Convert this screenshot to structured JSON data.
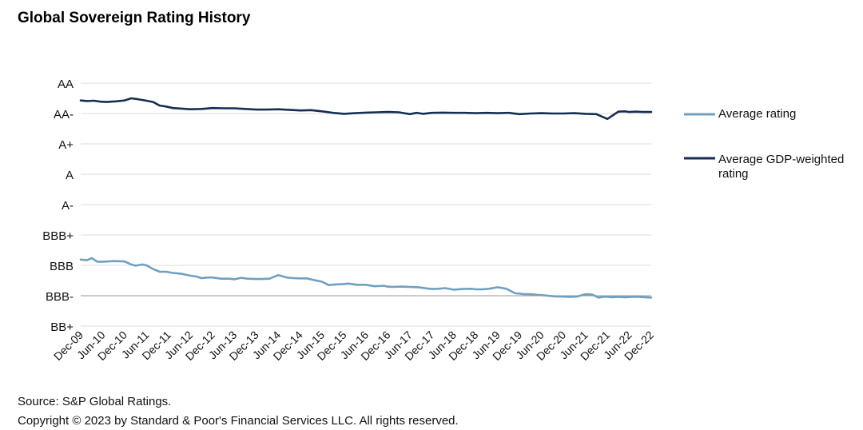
{
  "chart_data": {
    "type": "line",
    "title": "Global Sovereign Rating History",
    "xlabel": "",
    "ylabel": "",
    "y_categories": [
      "BB+",
      "BBB-",
      "BBB",
      "BBB+",
      "A-",
      "A",
      "A+",
      "AA-",
      "AA"
    ],
    "ylim": [
      0,
      8
    ],
    "x_range": [
      "Dec-09",
      "Dec-22"
    ],
    "x_ticks": [
      "Dec-09",
      "Jun-10",
      "Dec-10",
      "Jun-11",
      "Dec-11",
      "Jun-12",
      "Dec-12",
      "Jun-13",
      "Dec-13",
      "Jun-14",
      "Dec-14",
      "Jun-15",
      "Dec-15",
      "Jun-16",
      "Dec-16",
      "Jun-17",
      "Dec-17",
      "Jun-18",
      "Dec-18",
      "Jun-19",
      "Dec-19",
      "Jun-20",
      "Dec-20",
      "Jun-21",
      "Dec-21",
      "Jun-22",
      "Dec-22"
    ],
    "grid": true,
    "legend_position": "right",
    "series": [
      {
        "name": "Average rating",
        "color": "#6fa0c0",
        "x": [
          0,
          0.3,
          0.5,
          0.75,
          1,
          1.5,
          2,
          2.3,
          2.5,
          2.8,
          3,
          3.3,
          3.6,
          3.9,
          4.2,
          4.6,
          5,
          5.3,
          5.5,
          5.8,
          6,
          6.4,
          6.8,
          7,
          7.3,
          7.6,
          8,
          8.2,
          8.6,
          9,
          9.4,
          9.7,
          10,
          10.3,
          10.6,
          11,
          11.3,
          11.6,
          11.9,
          12.2,
          12.6,
          13,
          13.4,
          13.8,
          14,
          14.2,
          14.6,
          15,
          15.4,
          15.8,
          16,
          16.3,
          16.6,
          17,
          17.4,
          17.8,
          18,
          18.3,
          18.6,
          19,
          19.4,
          19.8,
          20,
          20.2,
          20.5,
          20.8,
          21,
          21.3,
          21.6,
          22,
          22.3,
          22.6,
          23,
          23.3,
          23.6,
          23.9,
          24.2,
          24.5,
          24.8,
          25.1,
          25.4,
          25.7,
          26
        ],
        "values": [
          2.19,
          2.17,
          2.24,
          2.12,
          2.12,
          2.14,
          2.13,
          2.03,
          1.99,
          2.03,
          2.0,
          1.88,
          1.79,
          1.79,
          1.75,
          1.72,
          1.66,
          1.63,
          1.58,
          1.6,
          1.6,
          1.56,
          1.56,
          1.54,
          1.59,
          1.56,
          1.55,
          1.55,
          1.56,
          1.68,
          1.6,
          1.58,
          1.57,
          1.57,
          1.52,
          1.46,
          1.35,
          1.37,
          1.38,
          1.4,
          1.36,
          1.36,
          1.31,
          1.33,
          1.3,
          1.29,
          1.3,
          1.29,
          1.28,
          1.24,
          1.22,
          1.23,
          1.25,
          1.2,
          1.22,
          1.23,
          1.21,
          1.21,
          1.23,
          1.28,
          1.23,
          1.08,
          1.07,
          1.05,
          1.05,
          1.03,
          1.02,
          1.0,
          0.98,
          0.97,
          0.96,
          0.97,
          1.05,
          1.04,
          0.94,
          0.97,
          0.95,
          0.96,
          0.95,
          0.96,
          0.96,
          0.95,
          0.94
        ]
      },
      {
        "name": "Average GDP-weighted rating",
        "color": "#152f52",
        "x": [
          0,
          0.3,
          0.6,
          0.9,
          1.2,
          1.6,
          2.0,
          2.3,
          2.6,
          3.0,
          3.3,
          3.6,
          3.9,
          4.2,
          4.6,
          5,
          5.5,
          6,
          6.5,
          7,
          7.5,
          8,
          8.5,
          9,
          9.5,
          10,
          10.5,
          11,
          11.5,
          12,
          12.5,
          13,
          13.5,
          14,
          14.5,
          15,
          15.3,
          15.6,
          16,
          16.5,
          17,
          17.5,
          18,
          18.5,
          19,
          19.5,
          20,
          20.5,
          21,
          21.5,
          22,
          22.5,
          23,
          23.5,
          24,
          24.5,
          24.8,
          25,
          25.3,
          25.6,
          26
        ],
        "values": [
          7.43,
          7.41,
          7.42,
          7.39,
          7.38,
          7.4,
          7.43,
          7.5,
          7.47,
          7.42,
          7.38,
          7.26,
          7.23,
          7.18,
          7.16,
          7.14,
          7.15,
          7.18,
          7.17,
          7.17,
          7.15,
          7.13,
          7.13,
          7.14,
          7.12,
          7.1,
          7.11,
          7.07,
          7.02,
          6.99,
          7.01,
          7.03,
          7.04,
          7.05,
          7.04,
          6.98,
          7.02,
          6.99,
          7.02,
          7.03,
          7.02,
          7.02,
          7.01,
          7.02,
          7.01,
          7.02,
          6.98,
          7.0,
          7.01,
          7.0,
          7.0,
          7.01,
          6.99,
          6.98,
          6.82,
          7.06,
          7.07,
          7.05,
          7.06,
          7.05,
          7.05
        ]
      }
    ],
    "source": "Source: S&P Global Ratings.",
    "copyright": "Copyright © 2023 by Standard & Poor's Financial Services LLC. All rights reserved."
  }
}
